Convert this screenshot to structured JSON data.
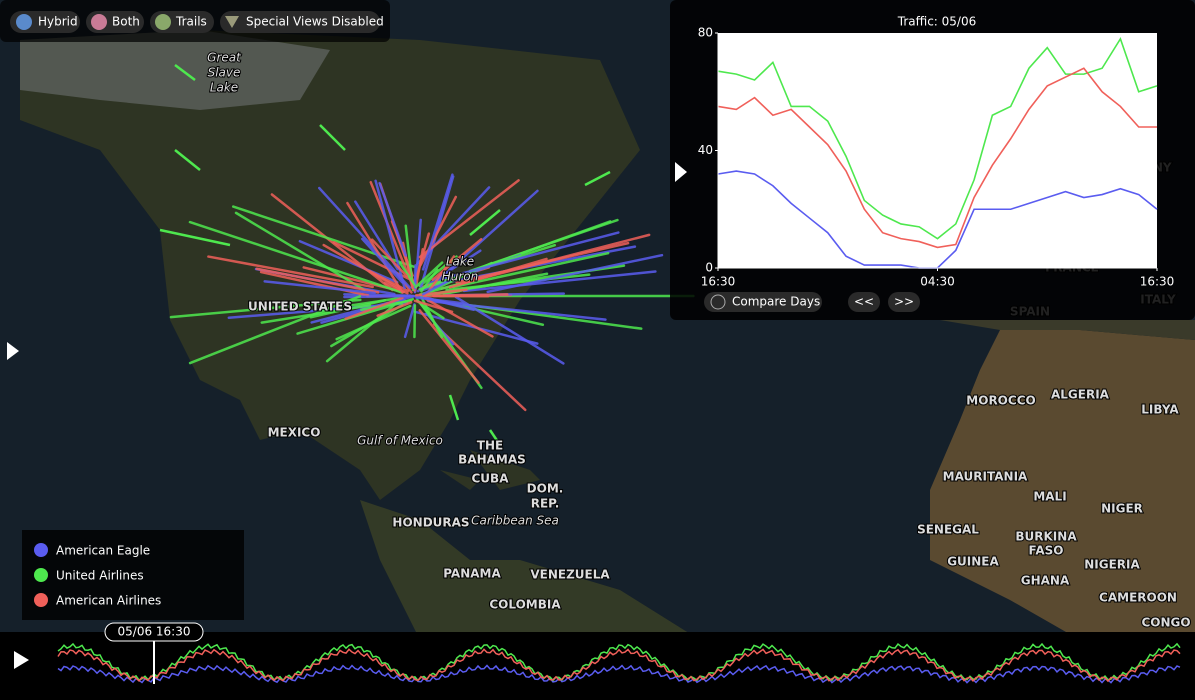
{
  "toolbar": {
    "buttons": [
      "Hybrid",
      "Both",
      "Trails",
      "Special Views Disabled"
    ]
  },
  "map": {
    "labels": [
      "Great",
      "Slave",
      "Lake",
      "Lake",
      "Huron",
      "UNITED STATES",
      "MEXICO",
      "Gulf of Mexico",
      "THE",
      "BAHAMAS",
      "CUBA",
      "DOM.",
      "REP.",
      "HONDURAS",
      "Caribbean Sea",
      "PANAMA",
      "VENEZUELA",
      "COLOMBIA",
      "SPAIN",
      "ITALY",
      "GERMANY",
      "FRANCE",
      "MOROCCO",
      "ALGERIA",
      "LIBYA",
      "MAURITANIA",
      "MALI",
      "NIGER",
      "SENEGAL",
      "BURKINA",
      "FASO",
      "GUINEA",
      "GHANA",
      "NIGERIA",
      "CAMEROON",
      "CONGO"
    ]
  },
  "chart_data": {
    "type": "line",
    "title": "Traffic: 05/06",
    "x": [
      0,
      1,
      2,
      3,
      4,
      5,
      6,
      7,
      8,
      9,
      10,
      11,
      12,
      13,
      14,
      15,
      16,
      17,
      18,
      19,
      20,
      21,
      22,
      23,
      24
    ],
    "xlim": [
      0,
      24
    ],
    "xticks": [
      {
        "value": 0,
        "label": "16:30"
      },
      {
        "value": 12,
        "label": "04:30"
      },
      {
        "value": 24,
        "label": "16:30"
      }
    ],
    "ylim": [
      0,
      80
    ],
    "yticks": [
      0,
      40,
      80
    ],
    "series": [
      {
        "name": "American Eagle",
        "color": "#5a5cf0",
        "values": [
          32,
          33,
          32,
          28,
          22,
          17,
          12,
          4,
          1,
          1,
          1,
          0,
          0,
          6,
          20,
          20,
          20,
          22,
          24,
          26,
          24,
          25,
          27,
          25,
          20
        ]
      },
      {
        "name": "United Airlines",
        "color": "#4ee84e",
        "values": [
          67,
          66,
          64,
          70,
          55,
          55,
          50,
          38,
          23,
          18,
          15,
          14,
          10,
          15,
          30,
          52,
          55,
          68,
          75,
          66,
          66,
          68,
          78,
          60,
          62
        ]
      },
      {
        "name": "American Airlines",
        "color": "#f0605a",
        "values": [
          55,
          54,
          58,
          52,
          54,
          48,
          42,
          33,
          20,
          12,
          10,
          9,
          7,
          8,
          24,
          35,
          44,
          54,
          62,
          65,
          68,
          60,
          55,
          48,
          48
        ]
      }
    ]
  },
  "chart_controls": {
    "compare": "Compare Days",
    "prev": "<<",
    "next": ">>"
  },
  "timeline": {
    "label": "05/06 16:30"
  }
}
